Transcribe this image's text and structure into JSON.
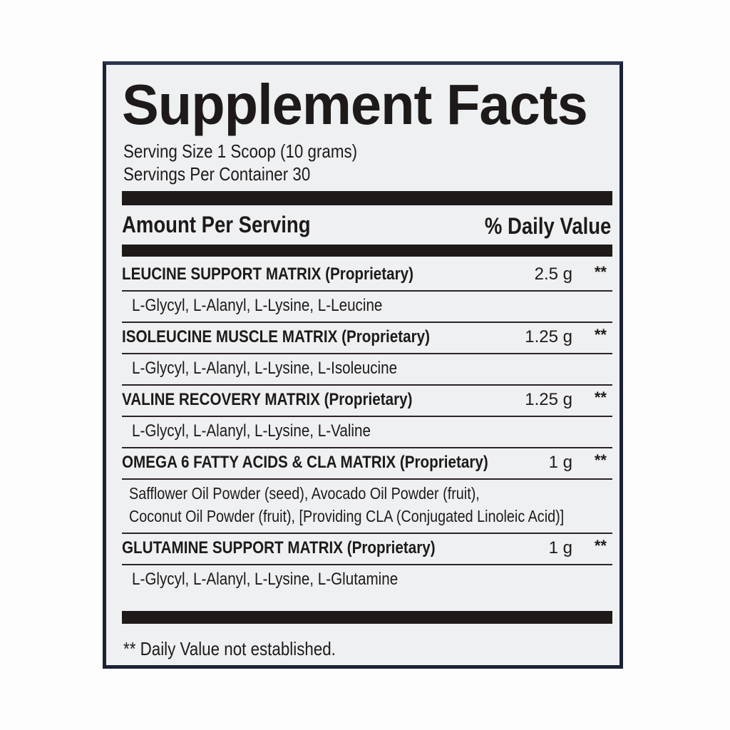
{
  "title": "Supplement Facts",
  "serving_size": "Serving Size 1 Scoop (10 grams)",
  "servings_per_container": "Servings Per Container 30",
  "header": {
    "amount": "Amount Per Serving",
    "daily_value": "% Daily Value"
  },
  "ingredients": [
    {
      "name": "LEUCINE SUPPORT MATRIX (Proprietary)",
      "amount": "2.5 g",
      "dv": "**",
      "components": [
        "L-Glycyl, L-Alanyl, L-Lysine, L-Leucine"
      ]
    },
    {
      "name": "ISOLEUCINE MUSCLE MATRIX (Proprietary)",
      "amount": "1.25 g",
      "dv": "**",
      "components": [
        "L-Glycyl, L-Alanyl, L-Lysine, L-Isoleucine"
      ]
    },
    {
      "name": "VALINE RECOVERY MATRIX (Proprietary)",
      "amount": "1.25 g",
      "dv": "**",
      "components": [
        "L-Glycyl, L-Alanyl, L-Lysine, L-Valine"
      ]
    },
    {
      "name": "OMEGA 6 FATTY ACIDS & CLA MATRIX (Proprietary)",
      "amount": "1 g",
      "dv": "**",
      "components": [
        "Safflower Oil Powder (seed), Avocado Oil Powder (fruit),",
        "Coconut Oil Powder (fruit), [Providing CLA (Conjugated Linoleic Acid)]"
      ]
    },
    {
      "name": "GLUTAMINE SUPPORT MATRIX (Proprietary)",
      "amount": "1 g",
      "dv": "**",
      "components": [
        "L-Glycyl, L-Alanyl, L-Lysine, L-Glutamine"
      ]
    }
  ],
  "footnote": "** Daily Value not established."
}
